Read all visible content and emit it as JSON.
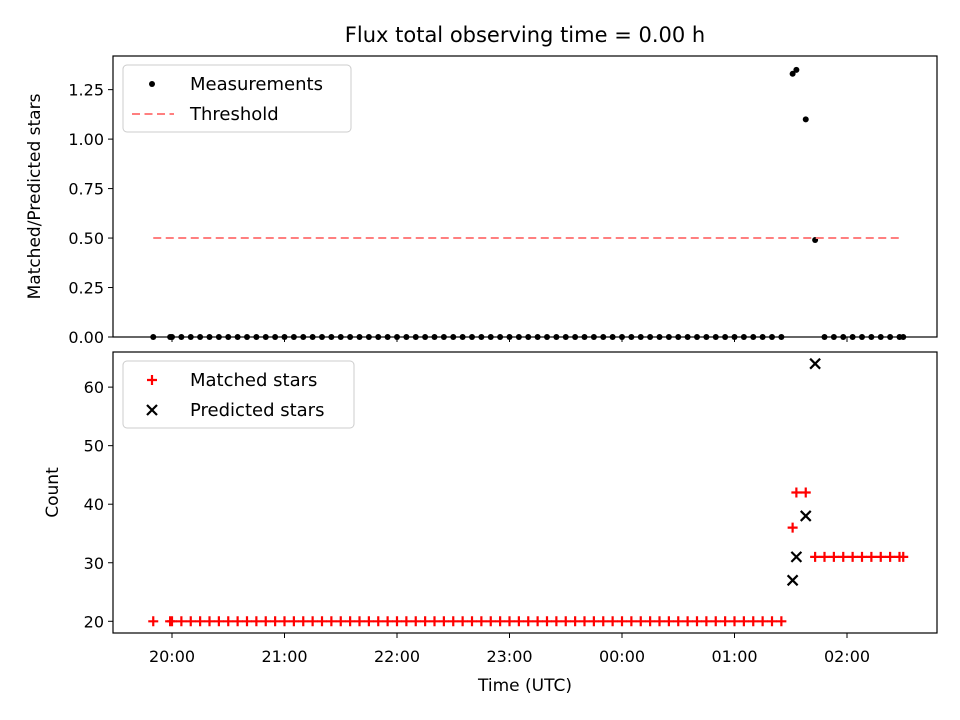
{
  "chart_data": [
    {
      "type": "scatter",
      "title": "Flux total observing time = 0.00 h",
      "ylabel": "Matched/Predicted stars",
      "xlabel": "",
      "ylim": [
        0,
        1.42
      ],
      "yticks": [
        "0.00",
        "0.25",
        "0.50",
        "0.75",
        "1.00",
        "1.25"
      ],
      "ytick_values": [
        0,
        0.25,
        0.5,
        0.75,
        1.0,
        1.25
      ],
      "legend_position": "upper-left",
      "series": [
        {
          "name": "Measurements",
          "marker": "dot",
          "color": "#000000",
          "x": [
            "19:50",
            "19:59",
            "20:00",
            "20:05",
            "20:10",
            "20:15",
            "20:20",
            "20:25",
            "20:30",
            "20:35",
            "20:40",
            "20:45",
            "20:50",
            "20:55",
            "21:00",
            "21:05",
            "21:10",
            "21:15",
            "21:20",
            "21:25",
            "21:30",
            "21:35",
            "21:40",
            "21:45",
            "21:50",
            "21:55",
            "22:00",
            "22:05",
            "22:10",
            "22:15",
            "22:20",
            "22:25",
            "22:30",
            "22:35",
            "22:40",
            "22:45",
            "22:50",
            "22:55",
            "23:00",
            "23:05",
            "23:10",
            "23:15",
            "23:20",
            "23:25",
            "23:30",
            "23:35",
            "23:40",
            "23:45",
            "23:50",
            "23:55",
            "00:00",
            "00:05",
            "00:10",
            "00:15",
            "00:20",
            "00:25",
            "00:30",
            "00:35",
            "00:40",
            "00:45",
            "00:50",
            "00:55",
            "01:00",
            "01:05",
            "01:10",
            "01:15",
            "01:20",
            "01:25",
            "01:31",
            "01:33",
            "01:38",
            "01:43",
            "01:48",
            "01:53",
            "01:58",
            "02:03",
            "02:08",
            "02:13",
            "02:18",
            "02:23",
            "02:28",
            "02:30"
          ],
          "y": [
            0,
            0,
            0,
            0,
            0,
            0,
            0,
            0,
            0,
            0,
            0,
            0,
            0,
            0,
            0,
            0,
            0,
            0,
            0,
            0,
            0,
            0,
            0,
            0,
            0,
            0,
            0,
            0,
            0,
            0,
            0,
            0,
            0,
            0,
            0,
            0,
            0,
            0,
            0,
            0,
            0,
            0,
            0,
            0,
            0,
            0,
            0,
            0,
            0,
            0,
            0,
            0,
            0,
            0,
            0,
            0,
            0,
            0,
            0,
            0,
            0,
            0,
            0,
            0,
            0,
            0,
            0,
            0,
            1.33,
            1.35,
            1.1,
            0.49,
            0,
            0,
            0,
            0,
            0,
            0,
            0,
            0,
            0,
            0
          ]
        },
        {
          "name": "Threshold",
          "type": "line",
          "style": "dashed",
          "color": "#ff7f7f",
          "x": [
            "19:50",
            "02:30"
          ],
          "y": [
            0.5,
            0.5
          ]
        }
      ]
    },
    {
      "type": "scatter",
      "title": "",
      "ylabel": "Count",
      "xlabel": "Time (UTC)",
      "ylim": [
        18,
        66
      ],
      "yticks": [
        "20",
        "30",
        "40",
        "50",
        "60"
      ],
      "ytick_values": [
        20,
        30,
        40,
        50,
        60
      ],
      "xticks": [
        "20:00",
        "21:00",
        "22:00",
        "23:00",
        "00:00",
        "01:00",
        "02:00"
      ],
      "xlim": [
        "19:30",
        "02:50"
      ],
      "legend_position": "upper-left",
      "series": [
        {
          "name": "Matched stars",
          "marker": "plus",
          "color": "#ff0000",
          "x": [
            "19:50",
            "19:59",
            "20:00",
            "20:05",
            "20:10",
            "20:15",
            "20:20",
            "20:25",
            "20:30",
            "20:35",
            "20:40",
            "20:45",
            "20:50",
            "20:55",
            "21:00",
            "21:05",
            "21:10",
            "21:15",
            "21:20",
            "21:25",
            "21:30",
            "21:35",
            "21:40",
            "21:45",
            "21:50",
            "21:55",
            "22:00",
            "22:05",
            "22:10",
            "22:15",
            "22:20",
            "22:25",
            "22:30",
            "22:35",
            "22:40",
            "22:45",
            "22:50",
            "22:55",
            "23:00",
            "23:05",
            "23:10",
            "23:15",
            "23:20",
            "23:25",
            "23:30",
            "23:35",
            "23:40",
            "23:45",
            "23:50",
            "23:55",
            "00:00",
            "00:05",
            "00:10",
            "00:15",
            "00:20",
            "00:25",
            "00:30",
            "00:35",
            "00:40",
            "00:45",
            "00:50",
            "00:55",
            "01:00",
            "01:05",
            "01:10",
            "01:15",
            "01:20",
            "01:25",
            "01:31",
            "01:33",
            "01:38",
            "01:43",
            "01:48",
            "01:53",
            "01:58",
            "02:03",
            "02:08",
            "02:13",
            "02:18",
            "02:23",
            "02:28",
            "02:30"
          ],
          "y": [
            20,
            20,
            20,
            20,
            20,
            20,
            20,
            20,
            20,
            20,
            20,
            20,
            20,
            20,
            20,
            20,
            20,
            20,
            20,
            20,
            20,
            20,
            20,
            20,
            20,
            20,
            20,
            20,
            20,
            20,
            20,
            20,
            20,
            20,
            20,
            20,
            20,
            20,
            20,
            20,
            20,
            20,
            20,
            20,
            20,
            20,
            20,
            20,
            20,
            20,
            20,
            20,
            20,
            20,
            20,
            20,
            20,
            20,
            20,
            20,
            20,
            20,
            20,
            20,
            20,
            20,
            20,
            20,
            36,
            42,
            42,
            31,
            31,
            31,
            31,
            31,
            31,
            31,
            31,
            31,
            31,
            31
          ]
        },
        {
          "name": "Predicted stars",
          "marker": "x",
          "color": "#000000",
          "x": [
            "01:31",
            "01:33",
            "01:38",
            "01:43"
          ],
          "y": [
            27,
            31,
            38,
            64
          ]
        }
      ]
    }
  ]
}
